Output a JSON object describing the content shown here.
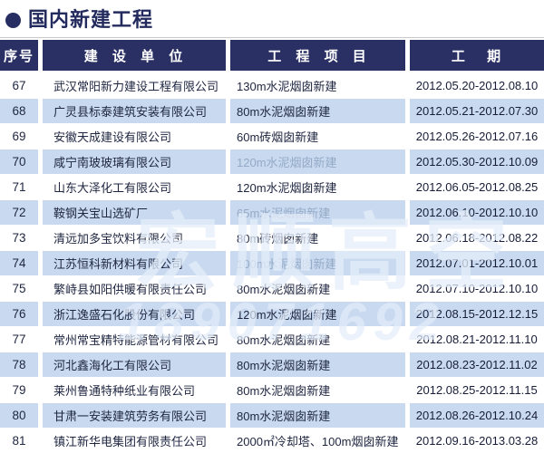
{
  "page": {
    "title": "国内新建工程",
    "bullet": "●"
  },
  "colors": {
    "header_bg": "#2a3064",
    "header_text": "#ffffff",
    "alt_row_bg": "#c9daf0",
    "body_text": "#1e2540",
    "title_text": "#232b5e"
  },
  "table": {
    "headers": {
      "no": "序号",
      "company": "建 设 单 位",
      "project": "工 程 项 目",
      "period": "工 期"
    },
    "rows": [
      {
        "no": "67",
        "company": "武汉常阳新力建设工程有限公司",
        "project": "130m水泥烟囱新建",
        "period": "2012.05.20-2012.08.10",
        "faded": false
      },
      {
        "no": "68",
        "company": "广灵县标泰建筑安装有限公司",
        "project": "80m水泥烟囱新建",
        "period": "2012.05.21-2012.07.30",
        "faded": false
      },
      {
        "no": "69",
        "company": "安徽天成建设有限公司",
        "project": "60m砖烟囱新建",
        "period": "2012.05.26-2012.07.16",
        "faded": false
      },
      {
        "no": "70",
        "company": "咸宁南玻玻璃有限公司",
        "project": "120m水泥烟囱新建",
        "period": "2012.05.30-2012.10.09",
        "faded": true
      },
      {
        "no": "71",
        "company": "山东大泽化工有限公司",
        "project": "120m水泥烟囱新建",
        "period": "2012.06.05-2012.08.25",
        "faded": false
      },
      {
        "no": "72",
        "company": "鞍钢关宝山选矿厂",
        "project": "65m水泥烟囱新建",
        "period": "2012.06.10-2012.10.10",
        "faded": true
      },
      {
        "no": "73",
        "company": "清远加多宝饮料有限公司",
        "project": "80m砖烟囱新建",
        "period": "2012.06.18-2012.08.22",
        "faded": false
      },
      {
        "no": "74",
        "company": "江苏恒科新材料有限公司",
        "project": "100m水泥烟囱新建",
        "period": "2012.07.01-2012.10.01",
        "faded": true
      },
      {
        "no": "75",
        "company": "繁峙县如阳供暖有限责任公司",
        "project": "80m水泥烟囱新建",
        "period": "2012.07.10-2012.10.10",
        "faded": false
      },
      {
        "no": "76",
        "company": "浙江逸盛石化股份有限公司",
        "project": "120m水泥烟囱新建",
        "period": "2012.08.15-2012.12.15",
        "faded": false
      },
      {
        "no": "77",
        "company": "常州常宝精特能源管材有限公司",
        "project": "80m水泥烟囱新建",
        "period": "2012.08.21-2012.11.10",
        "faded": false
      },
      {
        "no": "78",
        "company": "河北鑫海化工有限公司",
        "project": "80m水泥烟囱新建",
        "period": "2012.08.23-2012.11.02",
        "faded": false
      },
      {
        "no": "79",
        "company": "莱州鲁通特种纸业有限公司",
        "project": "80m水泥烟囱新建",
        "period": "2012.08.25-2012.11.15",
        "faded": false
      },
      {
        "no": "80",
        "company": "甘肃一安装建筑劳务有限公司",
        "project": "80m水泥烟囱新建",
        "period": "2012.08.26-2012.10.24",
        "faded": false
      },
      {
        "no": "81",
        "company": "镇江新华电集团有限责任公司",
        "project": "2000㎡冷却塔、100m烟囱新建",
        "period": "2012.09.16-2013.03.28",
        "faded": false
      }
    ]
  },
  "watermark": {
    "text1": "宏顺高空",
    "text2": "189071692"
  }
}
